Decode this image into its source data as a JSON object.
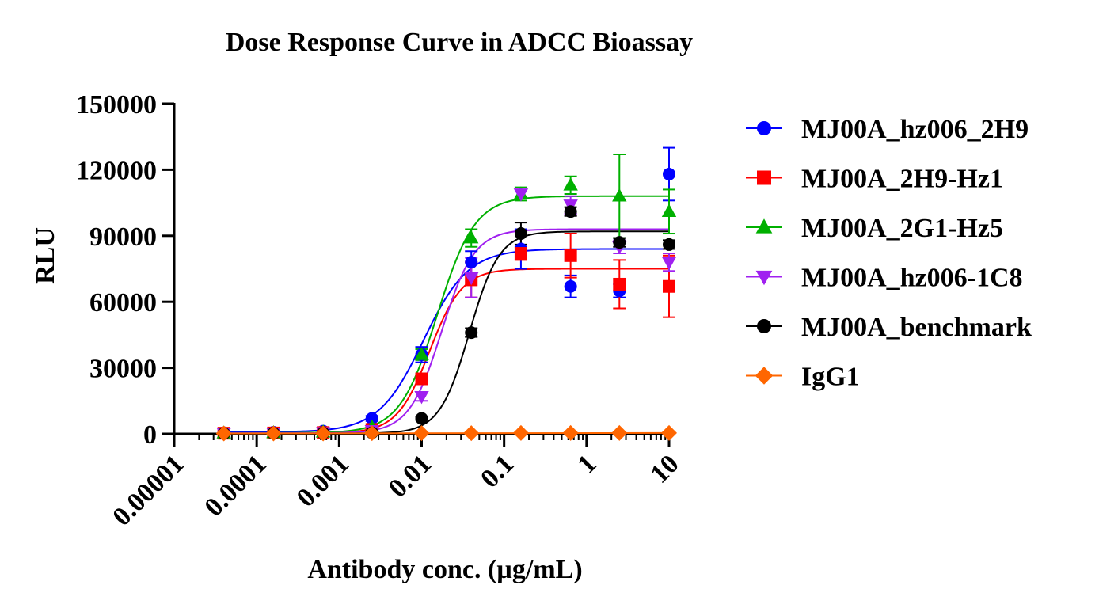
{
  "chart_data": {
    "type": "scatter",
    "title": "Dose Response Curve in ADCC Bioassay",
    "xlabel": "Antibody conc. (µg/mL)",
    "ylabel": "RLU",
    "xscale": "log",
    "xlim": [
      1e-05,
      10
    ],
    "ylim": [
      0,
      150000
    ],
    "xticks": [
      "0.00001",
      "0.0001",
      "0.001",
      "0.01",
      "0.1",
      "1",
      "10"
    ],
    "yticks": [
      "0",
      "30000",
      "60000",
      "90000",
      "120000",
      "150000"
    ],
    "legend_position": "right",
    "x": [
      4e-05,
      0.00016,
      0.00064,
      0.0025,
      0.01,
      0.04,
      0.16,
      0.64,
      2.5,
      10
    ],
    "series": [
      {
        "name": "MJ00A_hz006_2H9",
        "color": "#0000ff",
        "marker": "circle",
        "values": [
          500,
          700,
          1200,
          7000,
          36000,
          78000,
          84000,
          67000,
          65000,
          118000
        ],
        "errors": [
          300,
          300,
          400,
          1200,
          3500,
          5000,
          9000,
          5000,
          3000,
          12000
        ],
        "fit": {
          "bottom": 800,
          "top": 84000,
          "ec50": 0.0105,
          "hill": 1.6
        }
      },
      {
        "name": "MJ00A_2H9-Hz1",
        "color": "#ff0000",
        "marker": "square",
        "values": [
          300,
          400,
          600,
          2000,
          25000,
          70000,
          82000,
          81000,
          68000,
          67000
        ],
        "errors": [
          200,
          200,
          300,
          800,
          2500,
          8000,
          3000,
          10000,
          11000,
          14000
        ],
        "fit": {
          "bottom": 300,
          "top": 75000,
          "ec50": 0.0125,
          "hill": 2.2
        }
      },
      {
        "name": "MJ00A_2G1-Hz5",
        "color": "#00b000",
        "marker": "triangle-up",
        "values": [
          400,
          500,
          800,
          3000,
          36000,
          89000,
          109000,
          113000,
          108000,
          101000
        ],
        "errors": [
          200,
          200,
          300,
          700,
          2500,
          4000,
          3000,
          4000,
          19000,
          10000
        ],
        "fit": {
          "bottom": 400,
          "top": 108000,
          "ec50": 0.0155,
          "hill": 1.9
        }
      },
      {
        "name": "MJ00A_hz006-1C8",
        "color": "#a020f0",
        "marker": "triangle-down",
        "values": [
          300,
          400,
          600,
          1500,
          17000,
          71000,
          109000,
          104000,
          85000,
          78000
        ],
        "errors": [
          200,
          200,
          300,
          500,
          2000,
          9000,
          2000,
          4000,
          3000,
          4000
        ],
        "fit": {
          "bottom": 300,
          "top": 93000,
          "ec50": 0.0175,
          "hill": 2.2
        }
      },
      {
        "name": "MJ00A_benchmark",
        "color": "#000000",
        "marker": "circle",
        "values": [
          200,
          300,
          400,
          500,
          7000,
          46000,
          91000,
          101000,
          87000,
          86000
        ],
        "errors": [
          100,
          100,
          100,
          200,
          700,
          2000,
          5000,
          2000,
          2000,
          2000
        ],
        "fit": {
          "bottom": 200,
          "top": 92000,
          "ec50": 0.038,
          "hill": 2.4
        }
      },
      {
        "name": "IgG1",
        "color": "#ff6600",
        "marker": "diamond",
        "values": [
          200,
          200,
          200,
          300,
          300,
          300,
          400,
          400,
          400,
          400
        ],
        "errors": [
          50,
          50,
          50,
          50,
          50,
          50,
          50,
          50,
          50,
          50
        ],
        "fit": null
      }
    ]
  }
}
